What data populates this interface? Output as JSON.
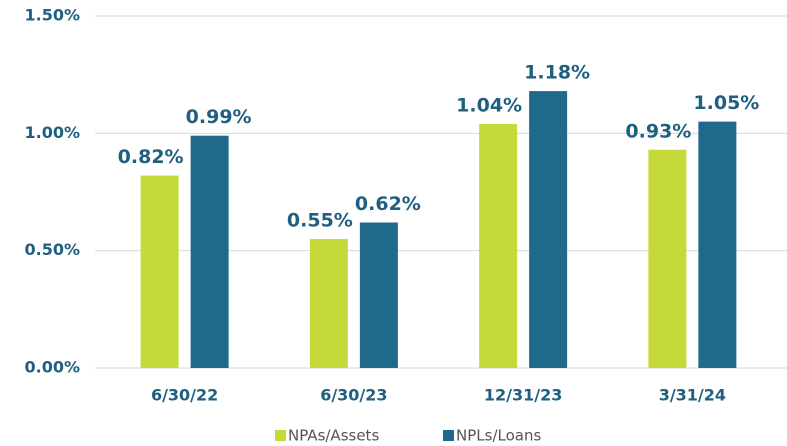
{
  "chart_data": {
    "type": "bar",
    "categories": [
      "6/30/22",
      "6/30/23",
      "12/31/23",
      "3/31/24"
    ],
    "series": [
      {
        "name": "NPAs/Assets",
        "color": "#c5d93a",
        "values": [
          0.82,
          0.55,
          1.04,
          0.93
        ],
        "value_labels": [
          "0.82%",
          "0.55%",
          "1.04%",
          "0.93%"
        ]
      },
      {
        "name": "NPLs/Loans",
        "color": "#1f6a8a",
        "values": [
          0.99,
          0.62,
          1.18,
          1.05
        ],
        "value_labels": [
          "0.99%",
          "0.62%",
          "1.18%",
          "1.05%"
        ]
      }
    ],
    "ylim": [
      0,
      1.5
    ],
    "yticks": [
      {
        "value": 0,
        "label": "0.00%"
      },
      {
        "value": 0.5,
        "label": "0.50%"
      },
      {
        "value": 1,
        "label": "1.00%"
      },
      {
        "value": 1.5,
        "label": "1.50%"
      }
    ],
    "grid": true,
    "legend": "bottom"
  }
}
